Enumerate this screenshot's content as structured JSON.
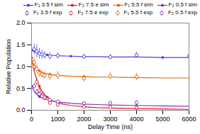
{
  "chart_data": {
    "type": "line",
    "xlabel": "Delay Time (ns)",
    "ylabel": "Relative Population",
    "xlim": [
      0,
      6000
    ],
    "ylim": [
      0.0,
      2.0
    ],
    "xticks": [
      0,
      1000,
      2000,
      3000,
      4000,
      5000,
      6000
    ],
    "yticks": [
      {
        "value": 0.0,
        "label": "0.0"
      },
      {
        "value": 0.5,
        "label": "0.5"
      },
      {
        "value": 1.0,
        "label": "1.0"
      },
      {
        "value": 1.5,
        "label": "1.5"
      },
      {
        "value": 2.0,
        "label": "2.0"
      }
    ],
    "grid": false,
    "legend": "upper right",
    "series": [
      {
        "name": "F₁ 3.5 f sim",
        "type": "line",
        "marker": "square",
        "color": "#4444dd",
        "x": [
          0,
          200,
          400,
          600,
          800,
          1000,
          1500,
          2000,
          2500,
          3000,
          3500,
          4000,
          5000,
          6000
        ],
        "values": [
          1.37,
          1.32,
          1.29,
          1.27,
          1.26,
          1.25,
          1.24,
          1.23,
          1.23,
          1.22,
          1.22,
          1.22,
          1.21,
          1.21
        ]
      },
      {
        "name": "F₂ 7.5 e sim",
        "type": "line",
        "marker": "square",
        "color": "#dd2222",
        "x": [
          0,
          100,
          200,
          300,
          400,
          500,
          600,
          700,
          800,
          1000,
          1200,
          1500,
          2000,
          2500,
          3000,
          4000,
          5000,
          6000
        ],
        "values": [
          1.2,
          0.9,
          0.7,
          0.55,
          0.44,
          0.36,
          0.3,
          0.26,
          0.22,
          0.17,
          0.14,
          0.11,
          0.08,
          0.06,
          0.05,
          0.04,
          0.03,
          0.02
        ]
      },
      {
        "name": "F₁ 5.5 f sim",
        "type": "line",
        "marker": "square",
        "color": "#dd6600",
        "x": [
          0,
          100,
          200,
          300,
          400,
          500,
          700,
          1000,
          1500,
          2000,
          2500,
          3000,
          4000,
          5000,
          6000
        ],
        "values": [
          1.1,
          1.0,
          0.94,
          0.9,
          0.87,
          0.85,
          0.82,
          0.8,
          0.78,
          0.77,
          0.76,
          0.76,
          0.75,
          0.74,
          0.74
        ]
      },
      {
        "name": "F₂ 0.5 f sim",
        "type": "line",
        "marker": "square",
        "color": "#8833bb",
        "x": [
          0,
          100,
          200,
          300,
          400,
          500,
          700,
          1000,
          1500,
          2000,
          2500,
          3000,
          4000,
          5000,
          6000
        ],
        "values": [
          0.55,
          0.43,
          0.36,
          0.31,
          0.28,
          0.26,
          0.22,
          0.19,
          0.16,
          0.14,
          0.13,
          0.12,
          0.11,
          0.1,
          0.09
        ]
      },
      {
        "name": "F₁ 3.5 f exp",
        "type": "scatter",
        "marker": "circle",
        "color": "#4444dd",
        "x": [
          100,
          200,
          300,
          400,
          500,
          700,
          1000,
          2000,
          3000,
          4000,
          6000
        ],
        "values": [
          1.4,
          1.35,
          1.3,
          1.28,
          1.26,
          1.24,
          1.25,
          1.23,
          1.22,
          1.27,
          1.25
        ],
        "errors": [
          0.12,
          0.15,
          0.12,
          0.1,
          0.09,
          0.08,
          0.07,
          0.06,
          0.06,
          0.06,
          0.06
        ]
      },
      {
        "name": "F₂ 7.5 e exp",
        "type": "scatter",
        "marker": "circle",
        "color": "#dd2222",
        "x": [
          100,
          200,
          300,
          400,
          500,
          700,
          1000,
          2000,
          3000,
          4000
        ],
        "values": [
          1.0,
          0.65,
          0.45,
          0.35,
          0.28,
          0.17,
          0.13,
          0.08,
          0.07,
          0.06
        ],
        "errors": [
          0.12,
          0.1,
          0.08,
          0.07,
          0.06,
          0.05,
          0.05,
          0.04,
          0.03,
          0.03
        ]
      },
      {
        "name": "F₁ 5.5 f exp",
        "type": "scatter",
        "marker": "circle",
        "color": "#dd6600",
        "x": [
          100,
          200,
          300,
          400,
          500,
          700,
          1000,
          2000,
          3000,
          4000
        ],
        "values": [
          1.1,
          0.95,
          0.85,
          0.82,
          0.8,
          0.78,
          0.8,
          0.73,
          0.78,
          0.77
        ],
        "errors": [
          0.1,
          0.09,
          0.09,
          0.08,
          0.08,
          0.09,
          0.09,
          0.08,
          0.08,
          0.08
        ]
      },
      {
        "name": "F₂ 0.5 f exp",
        "type": "scatter",
        "marker": "circle",
        "color": "#8833bb",
        "x": [
          100,
          200,
          300,
          400,
          500,
          700,
          1000,
          2000,
          3000,
          4000
        ],
        "values": [
          0.55,
          0.43,
          0.37,
          0.32,
          0.29,
          0.24,
          0.2,
          0.16,
          0.17,
          0.18
        ],
        "errors": [
          0.07,
          0.06,
          0.05,
          0.05,
          0.04,
          0.04,
          0.04,
          0.04,
          0.04,
          0.04
        ]
      }
    ]
  }
}
